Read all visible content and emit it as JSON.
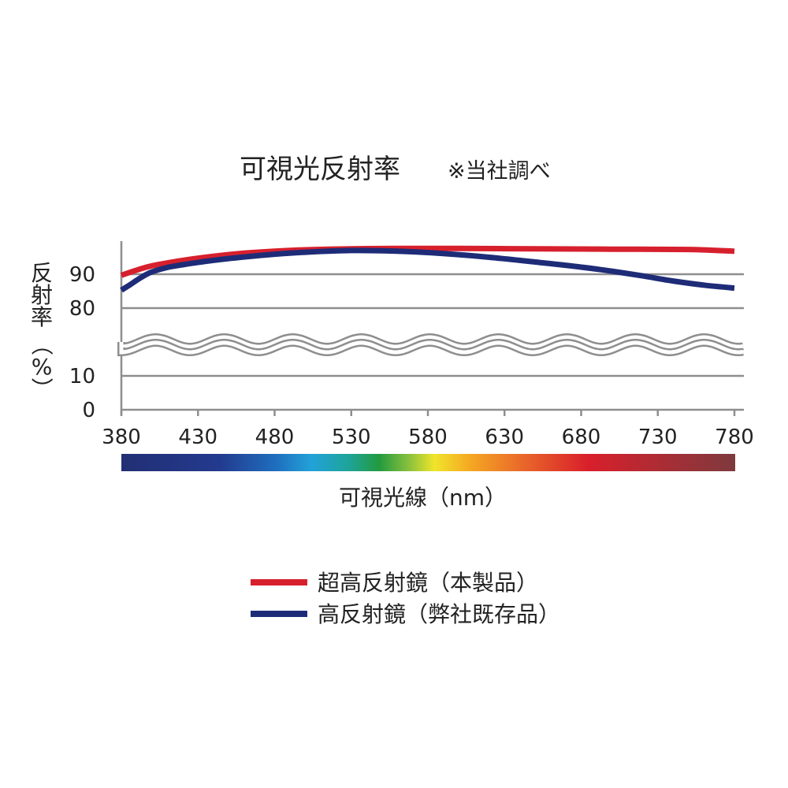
{
  "chart_data": {
    "type": "line",
    "title": "可視光反射率",
    "note": "※当社調べ",
    "xlabel": "可視光線（nm）",
    "ylabel_chars": [
      "反",
      "射",
      "率",
      "（",
      "%",
      "）"
    ],
    "x_ticks": [
      380,
      430,
      480,
      530,
      580,
      630,
      680,
      730,
      780
    ],
    "y_ticks": [
      {
        "value": 0,
        "label": "0"
      },
      {
        "value": 10,
        "label": "10"
      },
      {
        "value": 80,
        "label": "80"
      },
      {
        "value": 90,
        "label": "90"
      }
    ],
    "xlim": [
      380,
      780
    ],
    "y_axis_break": {
      "from": 10,
      "to": 80
    },
    "spectrum_bar": true,
    "series": [
      {
        "name": "超高反射鏡（本製品）",
        "color": "#d7202d",
        "x": [
          380,
          390,
          400,
          420,
          440,
          460,
          480,
          500,
          530,
          560,
          600,
          650,
          700,
          750,
          780
        ],
        "y": [
          89.7,
          91.2,
          92.5,
          94.1,
          95.3,
          96.2,
          96.8,
          97.2,
          97.5,
          97.6,
          97.6,
          97.5,
          97.4,
          97.3,
          96.8
        ]
      },
      {
        "name": "高反射鏡（弊社既存品）",
        "color": "#1e2c78",
        "x": [
          380,
          385,
          390,
          395,
          400,
          410,
          420,
          440,
          460,
          480,
          500,
          530,
          560,
          590,
          620,
          650,
          680,
          700,
          720,
          740,
          760,
          780
        ],
        "y": [
          85.3,
          86.7,
          88.2,
          89.6,
          90.7,
          92.0,
          92.8,
          94.1,
          95.1,
          95.9,
          96.5,
          97.0,
          96.8,
          96.1,
          95.0,
          93.6,
          92.1,
          90.9,
          89.5,
          88.0,
          86.8,
          85.9
        ]
      }
    ]
  }
}
